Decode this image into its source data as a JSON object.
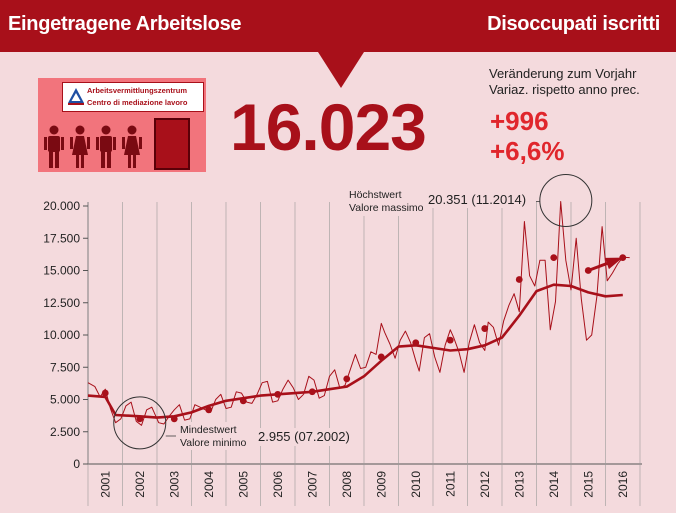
{
  "header": {
    "title_de": "Eingetragene Arbeitslose",
    "title_it": "Disoccupati iscritti"
  },
  "office": {
    "sign_de": "Arbeitsvermittlungszentrum",
    "sign_it": "Centro di mediazione lavoro"
  },
  "headline": {
    "value": "16.023",
    "variation_caption_de": "Veränderung zum Vorjahr",
    "variation_caption_it": "Variaz. rispetto anno prec.",
    "change_absolute": "+996",
    "change_percent": "+6,6%"
  },
  "colors": {
    "brand_red": "#a8101a",
    "accent_red": "#e0262c",
    "background": "#f4dadd",
    "office_pink": "#f2747c"
  },
  "chart_data": {
    "type": "line",
    "ylim": [
      0,
      20000
    ],
    "yticks": [
      0,
      2500,
      5000,
      7500,
      10000,
      12500,
      15000,
      17500,
      20000
    ],
    "ytick_labels": [
      "0",
      "2.500",
      "5.000",
      "7.500",
      "10.000",
      "12.500",
      "15.000",
      "17.500",
      "20.000"
    ],
    "xlim": [
      2000.5,
      2016.5
    ],
    "categories": [
      "2001",
      "2002",
      "2003",
      "2004",
      "2005",
      "2006",
      "2007",
      "2008",
      "2009",
      "2010",
      "2011",
      "2012",
      "2013",
      "2014",
      "2015",
      "2016"
    ],
    "series": [
      {
        "role": "monthly",
        "x": [
          2000.5,
          2000.7,
          2000.85,
          2001.0,
          2001.15,
          2001.3,
          2001.45,
          2001.6,
          2001.75,
          2001.9,
          2002.05,
          2002.2,
          2002.35,
          2002.55,
          2002.7,
          2002.85,
          2003.0,
          2003.15,
          2003.3,
          2003.45,
          2003.6,
          2003.75,
          2003.9,
          2004.05,
          2004.2,
          2004.35,
          2004.5,
          2004.65,
          2004.8,
          2004.95,
          2005.1,
          2005.25,
          2005.4,
          2005.55,
          2005.7,
          2005.85,
          2006.0,
          2006.15,
          2006.3,
          2006.45,
          2006.6,
          2006.75,
          2006.9,
          2007.05,
          2007.2,
          2007.35,
          2007.5,
          2007.65,
          2007.8,
          2007.95,
          2008.1,
          2008.25,
          2008.4,
          2008.55,
          2008.7,
          2008.85,
          2009.0,
          2009.1,
          2009.25,
          2009.4,
          2009.55,
          2009.7,
          2009.85,
          2010.0,
          2010.1,
          2010.25,
          2010.4,
          2010.55,
          2010.7,
          2010.85,
          2011.0,
          2011.1,
          2011.25,
          2011.4,
          2011.55,
          2011.7,
          2011.85,
          2012.0,
          2012.1,
          2012.25,
          2012.4,
          2012.55,
          2012.7,
          2012.85,
          2013.0,
          2013.15,
          2013.3,
          2013.45,
          2013.6,
          2013.75,
          2013.9,
          2014.05,
          2014.2,
          2014.35,
          2014.5,
          2014.65,
          2014.8,
          2014.95,
          2015.1,
          2015.25,
          2015.4,
          2015.55,
          2015.7,
          2015.85,
          2016.0,
          2016.2
        ],
        "values": [
          6300,
          6000,
          5200,
          5800,
          4300,
          3200,
          3500,
          4500,
          4800,
          3300,
          3000,
          4200,
          4400,
          3200,
          3100,
          3700,
          4200,
          4600,
          3400,
          3500,
          4600,
          4400,
          4200,
          4000,
          5000,
          5400,
          4300,
          4400,
          5600,
          5500,
          4800,
          4700,
          5400,
          6300,
          6400,
          4800,
          4900,
          5800,
          6500,
          5900,
          5000,
          5400,
          6800,
          6500,
          5100,
          5300,
          6800,
          7300,
          5900,
          6100,
          7300,
          8500,
          7400,
          7500,
          8700,
          8500,
          10900,
          10200,
          9300,
          8200,
          9600,
          10300,
          9400,
          8000,
          7200,
          9800,
          10100,
          8300,
          7100,
          9200,
          10400,
          9800,
          8700,
          7100,
          9400,
          10800,
          9400,
          8800,
          11000,
          10600,
          9200,
          11100,
          12300,
          13200,
          11800,
          18800,
          14600,
          13800,
          15800,
          15800,
          10400,
          12600,
          20351,
          15800,
          13500,
          17500,
          12800,
          9600,
          10000,
          13000,
          18400,
          14200,
          14800,
          15500,
          16023,
          16000
        ]
      },
      {
        "role": "trend",
        "x": [
          2000.5,
          2001.0,
          2001.3,
          2002.0,
          2002.5,
          2003.0,
          2003.5,
          2004.0,
          2004.5,
          2005.0,
          2005.5,
          2006.0,
          2006.5,
          2007.0,
          2007.5,
          2008.0,
          2008.5,
          2009.0,
          2009.5,
          2010.0,
          2010.5,
          2011.0,
          2011.5,
          2012.0,
          2012.5,
          2013.0,
          2013.5,
          2014.0,
          2014.5,
          2015.0,
          2015.5,
          2016.0
        ],
        "values": [
          5300,
          5200,
          3800,
          3700,
          3600,
          3700,
          4000,
          4500,
          4900,
          5100,
          5300,
          5400,
          5500,
          5600,
          5800,
          6000,
          6800,
          8000,
          9100,
          9200,
          9000,
          8800,
          8900,
          9200,
          9800,
          11500,
          13400,
          13900,
          13800,
          13300,
          13000,
          13100
        ]
      },
      {
        "role": "annual-markers",
        "x": [
          2001.0,
          2002.0,
          2003.0,
          2004.0,
          2005.0,
          2006.0,
          2007.0,
          2008.0,
          2009.0,
          2010.0,
          2011.0,
          2012.0,
          2013.0,
          2014.0,
          2015.0,
          2016.0
        ],
        "values": [
          5500,
          3500,
          3500,
          4200,
          4900,
          5400,
          5600,
          6600,
          8300,
          9400,
          9600,
          10500,
          14300,
          16000,
          15000,
          16000
        ]
      }
    ],
    "annotations": {
      "max": {
        "label_de": "Höchstwert",
        "label_it": "Valore massimo",
        "value_label": "20.351 (11.2014)",
        "x": 2014.35,
        "y": 20351
      },
      "min": {
        "label_de": "Mindestwert",
        "label_it": "Valore minimo",
        "value_label": "2.955 (07.2002)",
        "x": 2002.0,
        "y": 2955
      }
    },
    "grid": "vertical"
  }
}
